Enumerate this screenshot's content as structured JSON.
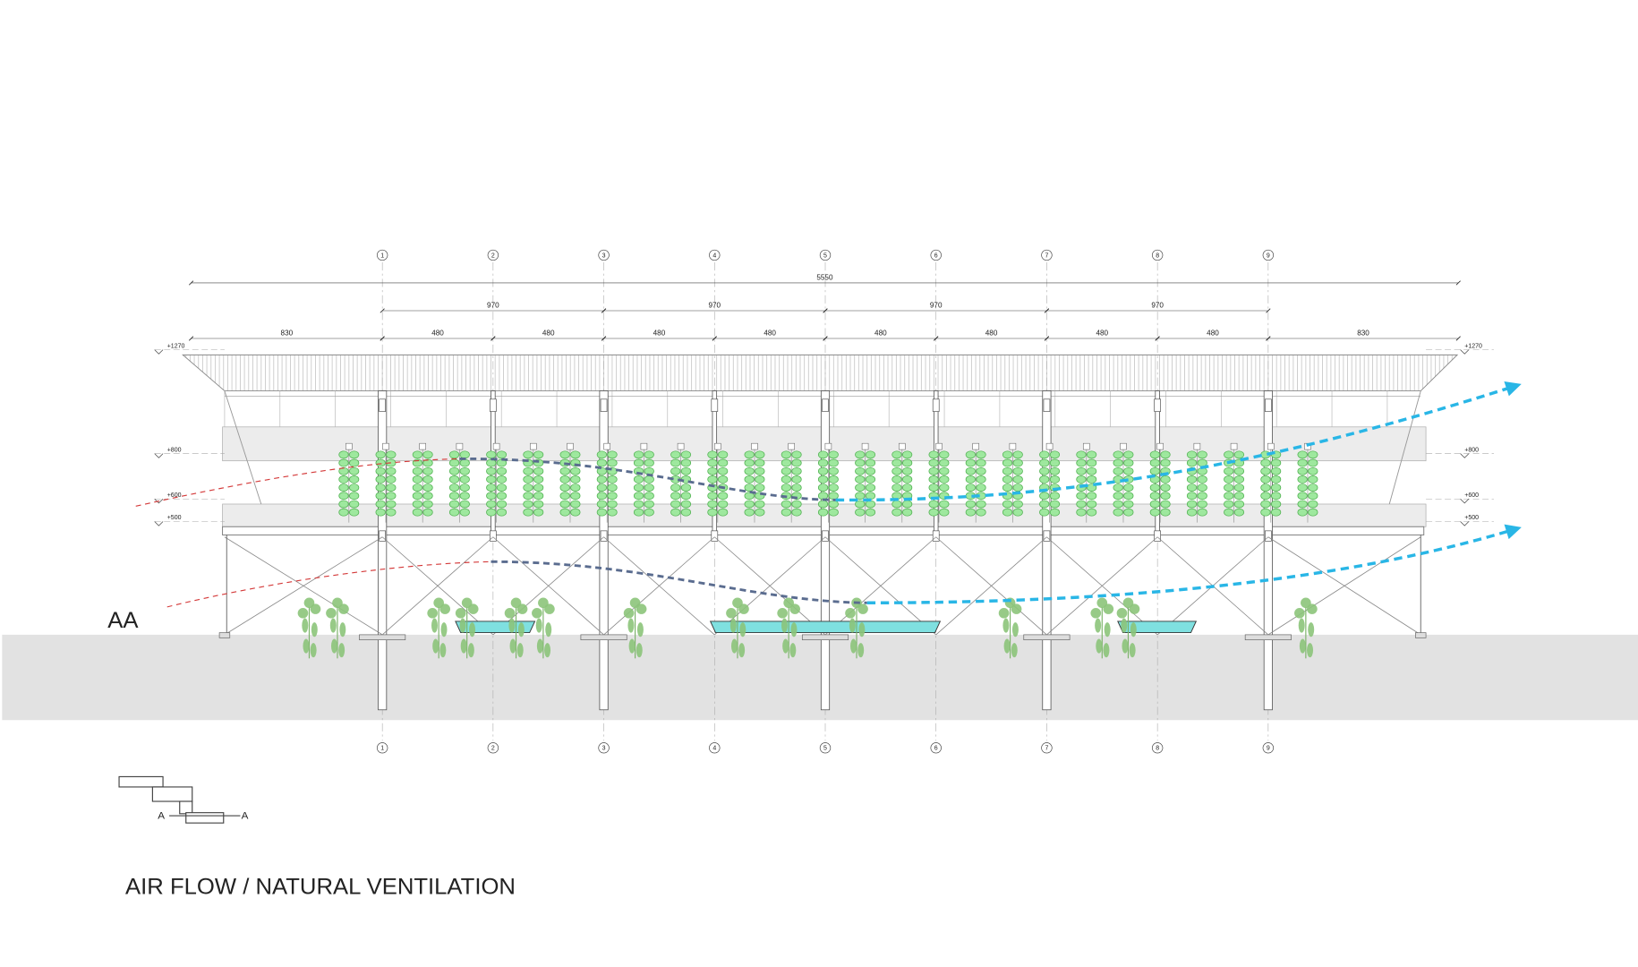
{
  "title": "AIR FLOW / NATURAL VENTILATION",
  "section_label": "AA",
  "key_plan": {
    "cut_labels": [
      "A",
      "A"
    ]
  },
  "grid_axes": [
    "1",
    "2",
    "3",
    "4",
    "5",
    "6",
    "7",
    "8",
    "9"
  ],
  "dimensions": {
    "overall": "5550",
    "bays": [
      "970",
      "970",
      "970",
      "970"
    ],
    "modules": [
      "830",
      "480",
      "480",
      "480",
      "480",
      "480",
      "480",
      "480",
      "480",
      "830"
    ]
  },
  "levels": [
    "+1270",
    "+800",
    "+600",
    "+500"
  ]
}
